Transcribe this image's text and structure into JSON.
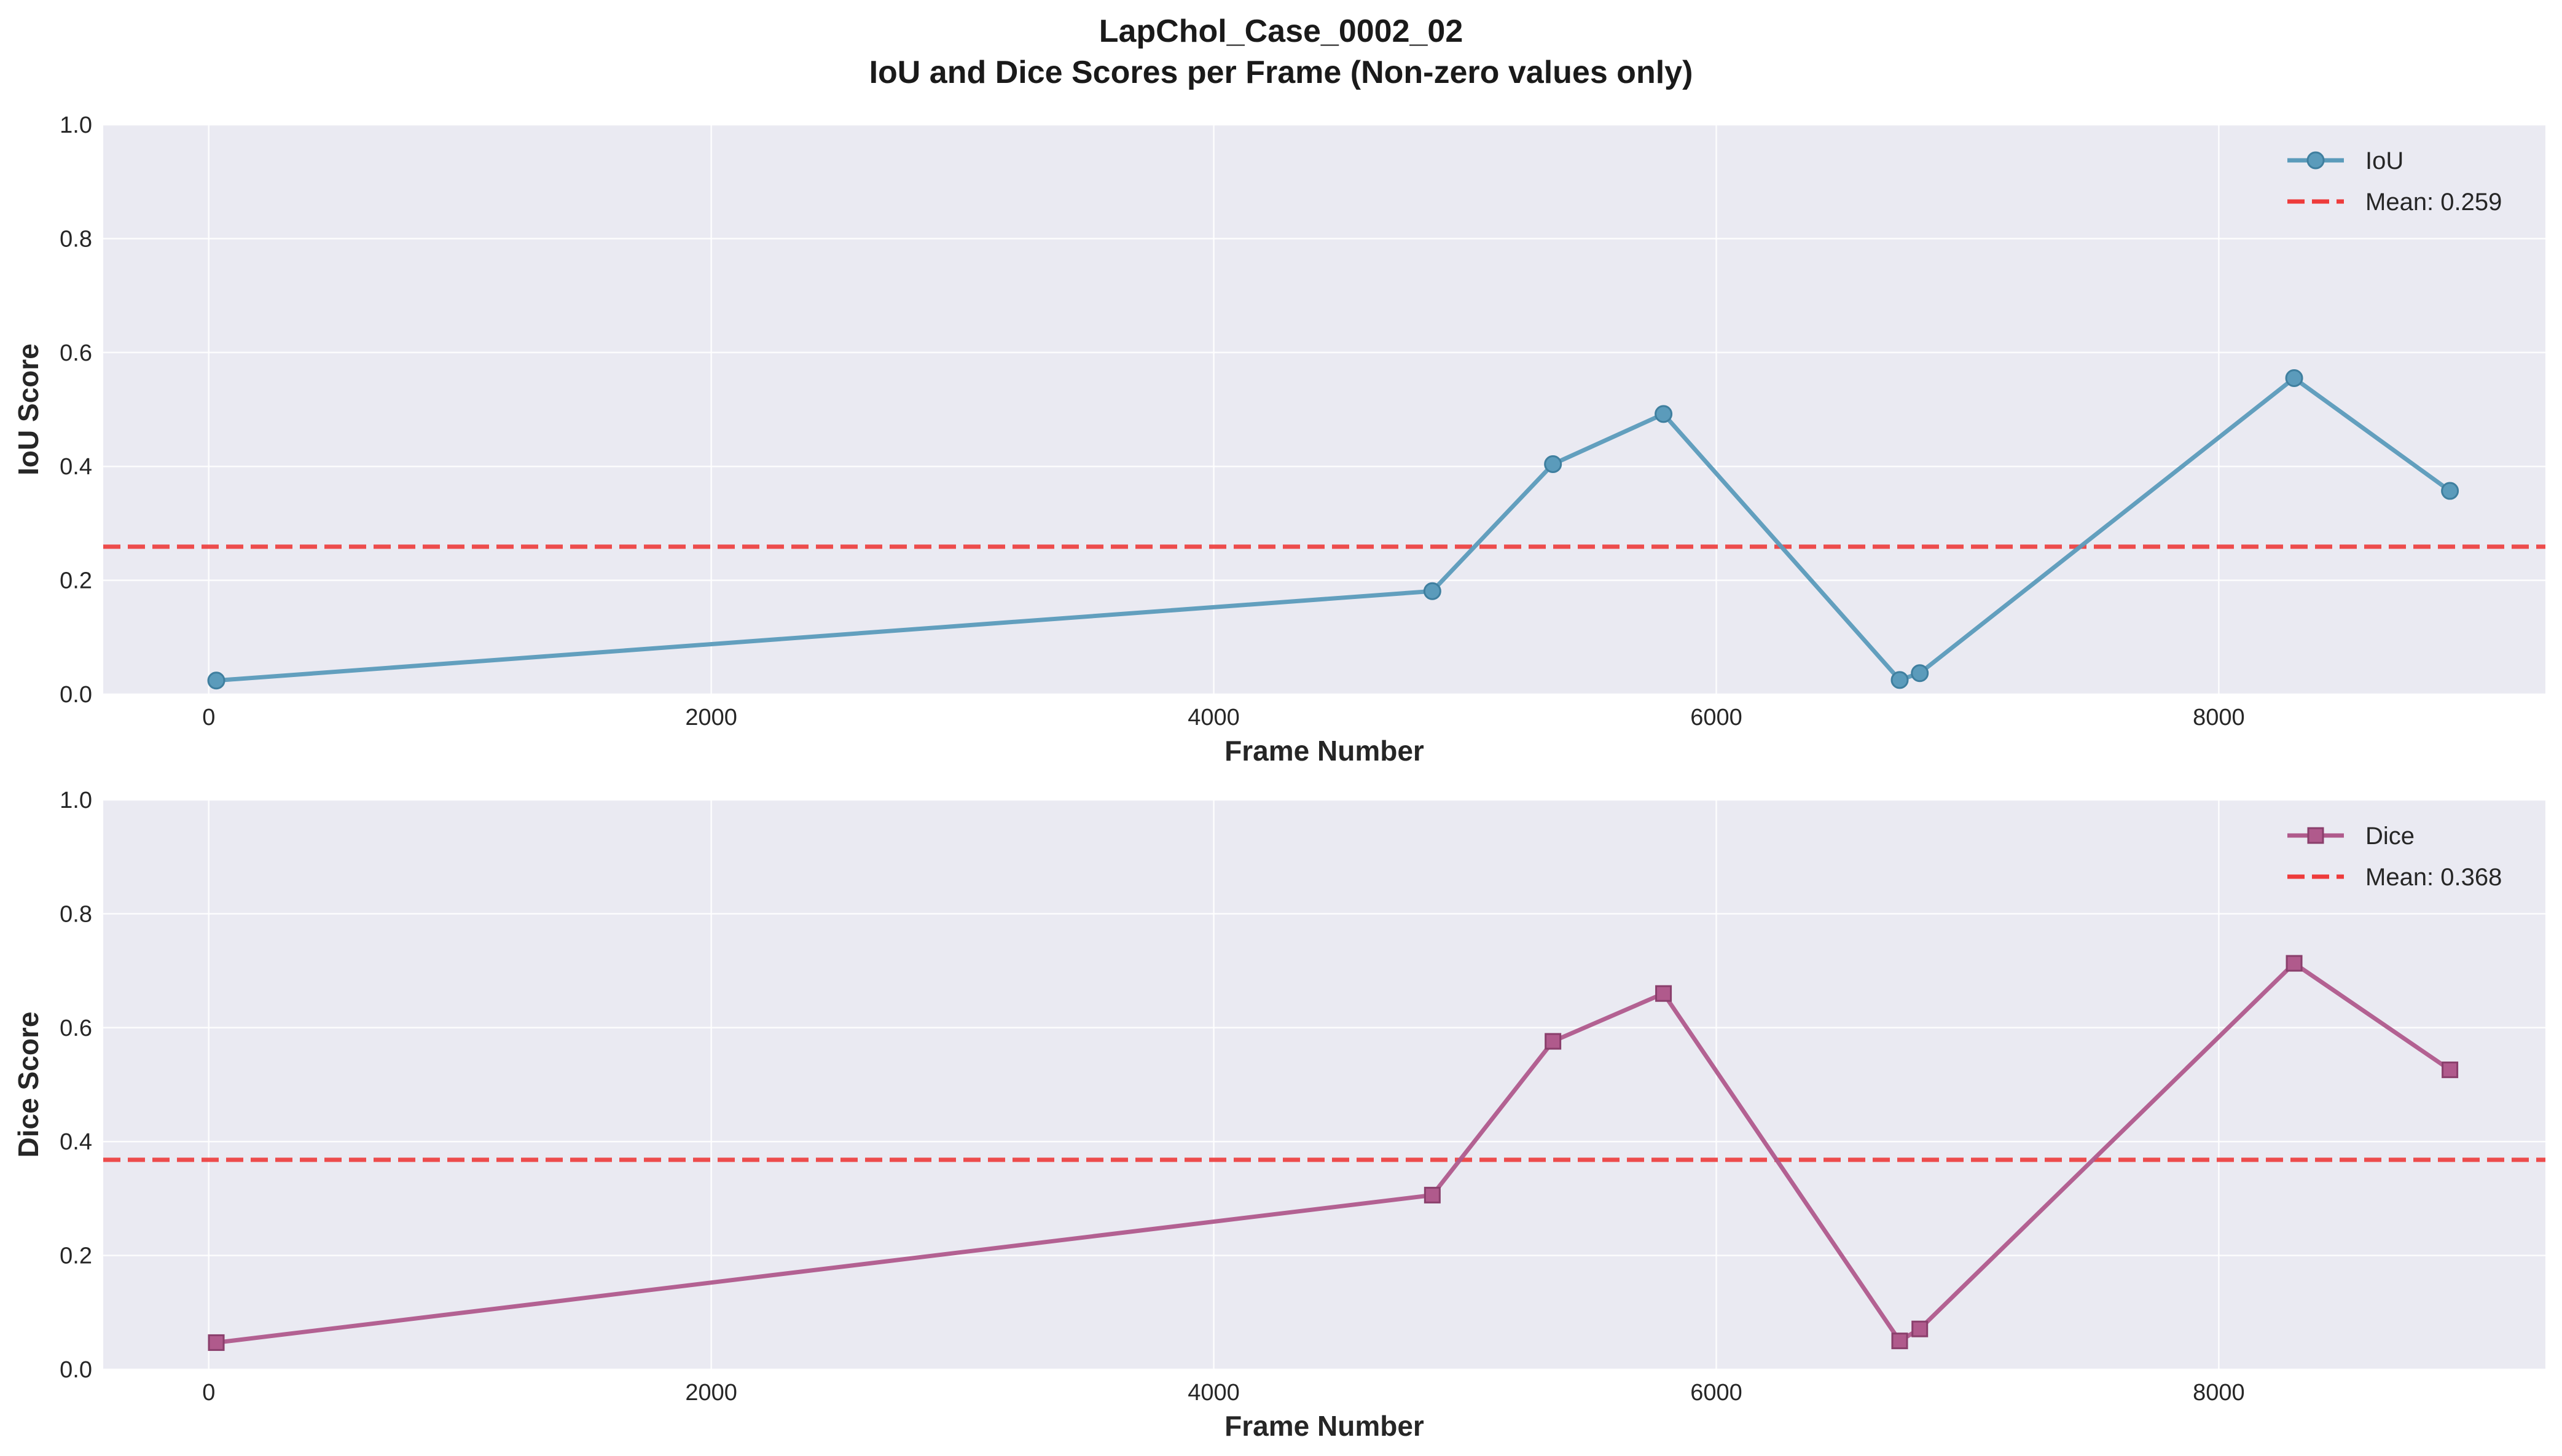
{
  "figure": {
    "title_line1": "LapChol_Case_0002_02",
    "title_line2": "IoU and Dice Scores per Frame (Non-zero values only)"
  },
  "chart_data": [
    {
      "type": "line",
      "name": "iou",
      "xlabel": "Frame Number",
      "ylabel": "IoU Score",
      "xlim": [
        -420,
        9300
      ],
      "ylim": [
        0.0,
        1.0
      ],
      "xticks": [
        0,
        2000,
        4000,
        6000,
        8000
      ],
      "yticks": [
        0.0,
        0.2,
        0.4,
        0.6,
        0.8,
        1.0
      ],
      "xtick_labels": [
        "0",
        "2000",
        "4000",
        "6000",
        "8000"
      ],
      "ytick_labels": [
        "0.0",
        "0.2",
        "0.4",
        "0.6",
        "0.8",
        "1.0"
      ],
      "grid": true,
      "legend_position": "top-right",
      "series": [
        {
          "name": "IoU",
          "marker": "circle",
          "color": "#5b9bbb",
          "x": [
            30,
            4870,
            5350,
            5790,
            6730,
            6810,
            8300,
            8920
          ],
          "y": [
            0.024,
            0.181,
            0.404,
            0.492,
            0.025,
            0.037,
            0.555,
            0.357
          ]
        }
      ],
      "mean_line": {
        "label": "Mean: 0.259",
        "value": 0.259,
        "color": "#ee3b3b"
      }
    },
    {
      "type": "line",
      "name": "dice",
      "xlabel": "Frame Number",
      "ylabel": "Dice Score",
      "xlim": [
        -420,
        9300
      ],
      "ylim": [
        0.0,
        1.0
      ],
      "xticks": [
        0,
        2000,
        4000,
        6000,
        8000
      ],
      "yticks": [
        0.0,
        0.2,
        0.4,
        0.6,
        0.8,
        1.0
      ],
      "xtick_labels": [
        "0",
        "2000",
        "4000",
        "6000",
        "8000"
      ],
      "ytick_labels": [
        "0.0",
        "0.2",
        "0.4",
        "0.6",
        "0.8",
        "1.0"
      ],
      "grid": true,
      "legend_position": "top-right",
      "series": [
        {
          "name": "Dice",
          "marker": "square",
          "color": "#b05a8c",
          "x": [
            30,
            4870,
            5350,
            5790,
            6730,
            6810,
            8300,
            8920
          ],
          "y": [
            0.047,
            0.306,
            0.576,
            0.66,
            0.05,
            0.071,
            0.713,
            0.526
          ]
        }
      ],
      "mean_line": {
        "label": "Mean: 0.368",
        "value": 0.368,
        "color": "#ee3b3b"
      }
    }
  ]
}
